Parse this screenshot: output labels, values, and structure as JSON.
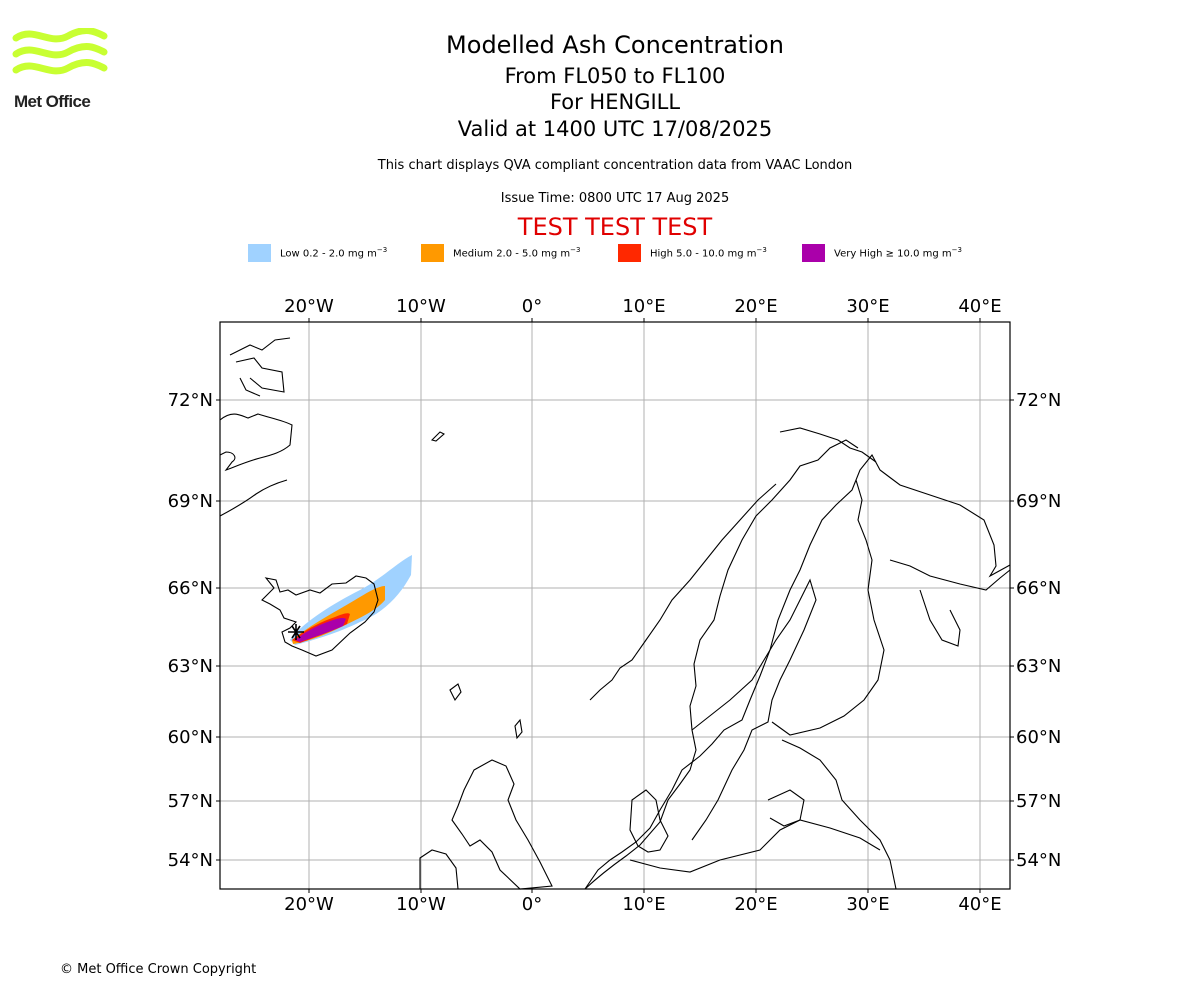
{
  "header": {
    "title": "Modelled Ash Concentration",
    "levels": "From FL050 to FL100",
    "volcano": "For HENGILL",
    "valid_time": "Valid at 1400 UTC 17/08/2025",
    "note": "This chart displays QVA compliant concentration data from VAAC London",
    "issue_time": "Issue Time: 0800 UTC 17 Aug 2025",
    "test_banner": "TEST TEST TEST"
  },
  "logo": {
    "text": "Met Office",
    "color": "#c8ff32"
  },
  "legend": [
    {
      "name": "Low",
      "range": "0.2 - 2.0",
      "unit": "mg m",
      "exp": "−3",
      "color": "#a0d2ff"
    },
    {
      "name": "Medium",
      "range": "2.0 - 5.0",
      "unit": "mg m",
      "exp": "−3",
      "color": "#ff9900"
    },
    {
      "name": "High",
      "range": "5.0 - 10.0",
      "unit": "mg m",
      "exp": "−3",
      "color": "#ff2800"
    },
    {
      "name": "Very High",
      "range": "≥  10.0",
      "unit": "mg m",
      "exp": "−3",
      "color": "#aa00aa"
    }
  ],
  "map": {
    "lon_ticks": [
      "20°W",
      "10°W",
      "0°",
      "10°E",
      "20°E",
      "30°E",
      "40°E"
    ],
    "lat_ticks": [
      "72°N",
      "69°N",
      "66°N",
      "63°N",
      "60°N",
      "57°N",
      "54°N"
    ]
  },
  "footer": {
    "copyright": "© Met Office Crown Copyright"
  }
}
